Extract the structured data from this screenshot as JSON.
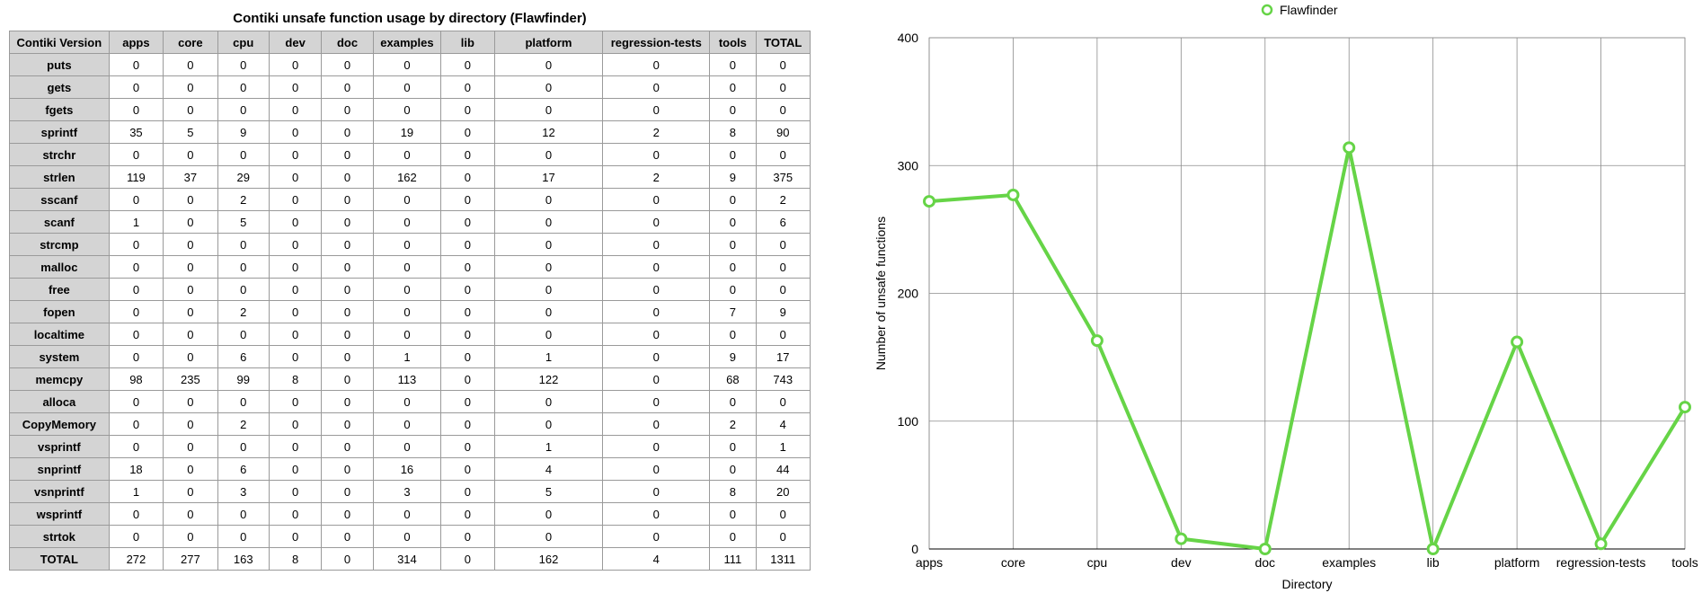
{
  "table": {
    "title": "Contiki unsafe function usage by directory (Flawfinder)",
    "columns": [
      "Contiki Version",
      "apps",
      "core",
      "cpu",
      "dev",
      "doc",
      "examples",
      "lib",
      "platform",
      "regression-tests",
      "tools",
      "TOTAL"
    ],
    "rows": [
      {
        "label": "puts",
        "values": [
          "0",
          "0",
          "0",
          "0",
          "0",
          "0",
          "0",
          "0",
          "0",
          "0",
          "0"
        ]
      },
      {
        "label": "gets",
        "values": [
          "0",
          "0",
          "0",
          "0",
          "0",
          "0",
          "0",
          "0",
          "0",
          "0",
          "0"
        ]
      },
      {
        "label": "fgets",
        "values": [
          "0",
          "0",
          "0",
          "0",
          "0",
          "0",
          "0",
          "0",
          "0",
          "0",
          "0"
        ]
      },
      {
        "label": "sprintf",
        "values": [
          "35",
          "5",
          "9",
          "0",
          "0",
          "19",
          "0",
          "12",
          "2",
          "8",
          "90"
        ]
      },
      {
        "label": "strchr",
        "values": [
          "0",
          "0",
          "0",
          "0",
          "0",
          "0",
          "0",
          "0",
          "0",
          "0",
          "0"
        ]
      },
      {
        "label": "strlen",
        "values": [
          "119",
          "37",
          "29",
          "0",
          "0",
          "162",
          "0",
          "17",
          "2",
          "9",
          "375"
        ]
      },
      {
        "label": "sscanf",
        "values": [
          "0",
          "0",
          "2",
          "0",
          "0",
          "0",
          "0",
          "0",
          "0",
          "0",
          "2"
        ]
      },
      {
        "label": "scanf",
        "values": [
          "1",
          "0",
          "5",
          "0",
          "0",
          "0",
          "0",
          "0",
          "0",
          "0",
          "6"
        ]
      },
      {
        "label": "strcmp",
        "values": [
          "0",
          "0",
          "0",
          "0",
          "0",
          "0",
          "0",
          "0",
          "0",
          "0",
          "0"
        ]
      },
      {
        "label": "malloc",
        "values": [
          "0",
          "0",
          "0",
          "0",
          "0",
          "0",
          "0",
          "0",
          "0",
          "0",
          "0"
        ]
      },
      {
        "label": "free",
        "values": [
          "0",
          "0",
          "0",
          "0",
          "0",
          "0",
          "0",
          "0",
          "0",
          "0",
          "0"
        ]
      },
      {
        "label": "fopen",
        "values": [
          "0",
          "0",
          "2",
          "0",
          "0",
          "0",
          "0",
          "0",
          "0",
          "7",
          "9"
        ]
      },
      {
        "label": "localtime",
        "values": [
          "0",
          "0",
          "0",
          "0",
          "0",
          "0",
          "0",
          "0",
          "0",
          "0",
          "0"
        ]
      },
      {
        "label": "system",
        "values": [
          "0",
          "0",
          "6",
          "0",
          "0",
          "1",
          "0",
          "1",
          "0",
          "9",
          "17"
        ]
      },
      {
        "label": "memcpy",
        "values": [
          "98",
          "235",
          "99",
          "8",
          "0",
          "113",
          "0",
          "122",
          "0",
          "68",
          "743"
        ]
      },
      {
        "label": "alloca",
        "values": [
          "0",
          "0",
          "0",
          "0",
          "0",
          "0",
          "0",
          "0",
          "0",
          "0",
          "0"
        ]
      },
      {
        "label": "CopyMemory",
        "values": [
          "0",
          "0",
          "2",
          "0",
          "0",
          "0",
          "0",
          "0",
          "0",
          "2",
          "4"
        ]
      },
      {
        "label": "vsprintf",
        "values": [
          "0",
          "0",
          "0",
          "0",
          "0",
          "0",
          "0",
          "1",
          "0",
          "0",
          "1"
        ]
      },
      {
        "label": "snprintf",
        "values": [
          "18",
          "0",
          "6",
          "0",
          "0",
          "16",
          "0",
          "4",
          "0",
          "0",
          "44"
        ]
      },
      {
        "label": "vsnprintf",
        "values": [
          "1",
          "0",
          "3",
          "0",
          "0",
          "3",
          "0",
          "5",
          "0",
          "8",
          "20"
        ]
      },
      {
        "label": "wsprintf",
        "values": [
          "0",
          "0",
          "0",
          "0",
          "0",
          "0",
          "0",
          "0",
          "0",
          "0",
          "0"
        ]
      },
      {
        "label": "strtok",
        "values": [
          "0",
          "0",
          "0",
          "0",
          "0",
          "0",
          "0",
          "0",
          "0",
          "0",
          "0"
        ]
      },
      {
        "label": "TOTAL",
        "values": [
          "272",
          "277",
          "163",
          "8",
          "0",
          "314",
          "0",
          "162",
          "4",
          "111",
          "1311"
        ]
      }
    ]
  },
  "chart_data": {
    "type": "line",
    "categories": [
      "apps",
      "core",
      "cpu",
      "dev",
      "doc",
      "examples",
      "lib",
      "platform",
      "regression-tests",
      "tools"
    ],
    "series": [
      {
        "name": "Flawfinder",
        "values": [
          272,
          277,
          163,
          8,
          0,
          314,
          0,
          162,
          4,
          111
        ],
        "color": "#66d447"
      }
    ],
    "title": "",
    "xlabel": "Directory",
    "ylabel": "Number of unsafe functions",
    "ylim": [
      0,
      400
    ],
    "yticks": [
      0,
      100,
      200,
      300,
      400
    ],
    "grid": true,
    "legend": "top-center"
  }
}
